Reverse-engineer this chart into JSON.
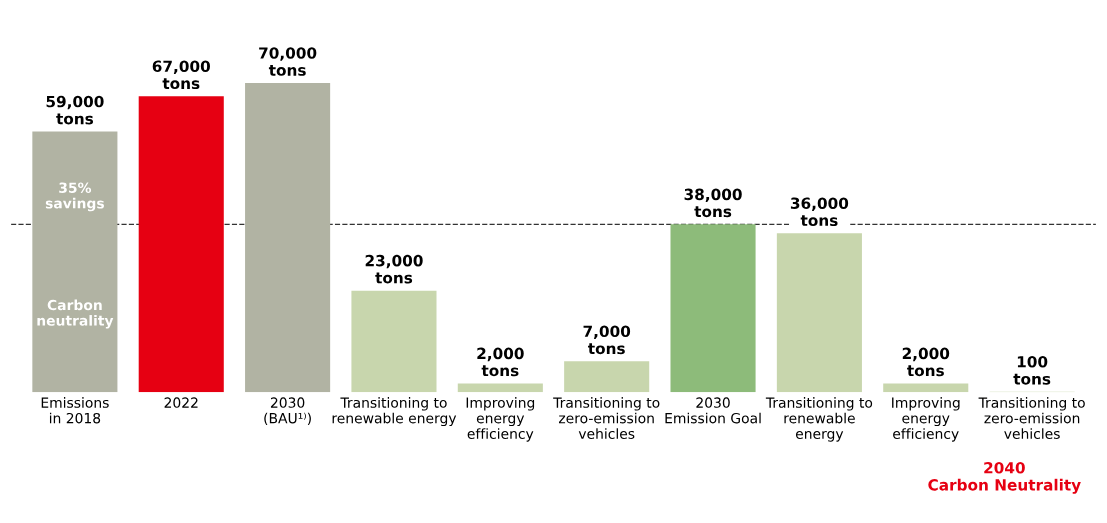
{
  "chart_data": {
    "type": "bar",
    "categories": [
      "Emissions\nin 2018",
      "2022",
      "2030\n(BAU¹⁾)",
      "Transitioning to\nrenewable energy",
      "Improving\nenergy\nefficiency",
      "Transitioning to\nzero-emission\nvehicles",
      "2030\nEmission Goal",
      "Transitioning to\nrenewable\nenergy",
      "Improving\nenergy\nefficiency",
      "Transitioning to\nzero-emission\nvehicles"
    ],
    "values": [
      59000,
      67000,
      70000,
      23000,
      2000,
      7000,
      38000,
      36000,
      2000,
      100
    ],
    "colors": [
      "#b1b3a3",
      "#e60012",
      "#b1b3a3",
      "#c8d6ad",
      "#c8d6ad",
      "#c8d6ad",
      "#8dbb7a",
      "#c8d6ad",
      "#c8d6ad",
      "#c8d6ad"
    ],
    "value_labels": [
      "59,000\ntons",
      "67,000\ntons",
      "70,000\ntons",
      "23,000\ntons",
      "2,000\ntons",
      "7,000\ntons",
      "38,000\ntons",
      "36,000\ntons",
      "2,000\ntons",
      "100\ntons"
    ],
    "annotations": [
      "35%\nsavings",
      "Carbon\nneutrality",
      "2040\nCarbon Neutrality"
    ],
    "ref_lines": [
      {
        "axis": "y",
        "value": 38000,
        "line_style": "dashed",
        "color": "#333333"
      }
    ],
    "tick_labels": "x",
    "legend": false,
    "grid": false
  }
}
